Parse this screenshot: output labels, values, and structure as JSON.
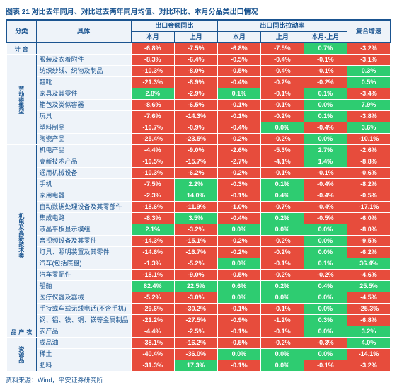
{
  "title": "图表 21 对比去年同月、对比过去两年同月均值、对比环比、本月分品类出口情况",
  "title_color": "#1a5490",
  "source": "资料来源：Wind，平安证券研究所",
  "source_color": "#1a5490",
  "colors": {
    "header_bg": "#eef3f9",
    "header_text": "#1a5490",
    "border": "#1a5490",
    "neg_bg": "#e74c3c",
    "pos_bg": "#2ecc71",
    "val_text": "#ffffff"
  },
  "headers": {
    "cat": "分类",
    "item": "具体",
    "group_amt": "出口金额同比",
    "group_pull": "出口同比拉动率",
    "amt_cur": "本月",
    "amt_prev": "上月",
    "pull_cur": "本月",
    "pull_prev": "上月",
    "pull_diff": "本月-上月",
    "compound": "复合增速"
  },
  "total_row": {
    "cat": "合计",
    "item": "",
    "amt_cur": "-6.8%",
    "amt_prev": "-7.5%",
    "pull_cur": "-6.8%",
    "pull_prev": "-7.5%",
    "pull_diff": "0.7%",
    "compound": "-3.2%"
  },
  "groups": [
    {
      "cat": "劳动密集型",
      "rows": [
        {
          "item": "服装及衣着附件",
          "amt_cur": "-8.3%",
          "amt_prev": "-6.4%",
          "pull_cur": "-0.5%",
          "pull_prev": "-0.4%",
          "pull_diff": "-0.1%",
          "compound": "-3.1%"
        },
        {
          "item": "纺织纱线、织物及制品",
          "amt_cur": "-10.3%",
          "amt_prev": "-8.0%",
          "pull_cur": "-0.5%",
          "pull_prev": "-0.4%",
          "pull_diff": "-0.1%",
          "compound": "0.3%"
        },
        {
          "item": "鞋靴",
          "amt_cur": "-21.3%",
          "amt_prev": "-8.9%",
          "pull_cur": "-0.4%",
          "pull_prev": "-0.2%",
          "pull_diff": "-0.2%",
          "compound": "0.5%"
        },
        {
          "item": "家具及其零件",
          "amt_cur": "2.8%",
          "amt_prev": "-2.9%",
          "pull_cur": "0.1%",
          "pull_prev": "-0.1%",
          "pull_diff": "0.1%",
          "compound": "-3.4%"
        },
        {
          "item": "箱包及类似容器",
          "amt_cur": "-8.6%",
          "amt_prev": "-6.5%",
          "pull_cur": "-0.1%",
          "pull_prev": "-0.1%",
          "pull_diff": "0.0%",
          "compound": "7.9%"
        },
        {
          "item": "玩具",
          "amt_cur": "-7.6%",
          "amt_prev": "-14.3%",
          "pull_cur": "-0.1%",
          "pull_prev": "-0.2%",
          "pull_diff": "0.1%",
          "compound": "-3.8%"
        },
        {
          "item": "塑料制品",
          "amt_cur": "-10.7%",
          "amt_prev": "-0.9%",
          "pull_cur": "-0.4%",
          "pull_prev": "0.0%",
          "pull_diff": "-0.4%",
          "compound": "3.6%"
        },
        {
          "item": "陶瓷产品",
          "amt_cur": "-25.4%",
          "amt_prev": "-23.5%",
          "pull_cur": "-0.2%",
          "pull_prev": "-0.2%",
          "pull_diff": "0.0%",
          "compound": "-10.1%"
        }
      ]
    },
    {
      "cat": "机电及高新技术类",
      "rows": [
        {
          "item": "机电产品",
          "amt_cur": "-4.4%",
          "amt_prev": "-9.0%",
          "pull_cur": "-2.6%",
          "pull_prev": "-5.3%",
          "pull_diff": "2.7%",
          "compound": "-2.6%"
        },
        {
          "item": "高新技术产品",
          "amt_cur": "-10.5%",
          "amt_prev": "-15.7%",
          "pull_cur": "-2.7%",
          "pull_prev": "-4.1%",
          "pull_diff": "1.4%",
          "compound": "-8.8%"
        },
        {
          "item": "通用机械设备",
          "amt_cur": "-10.3%",
          "amt_prev": "-6.2%",
          "pull_cur": "-0.2%",
          "pull_prev": "-0.1%",
          "pull_diff": "-0.1%",
          "compound": "-0.6%"
        },
        {
          "item": "手机",
          "amt_cur": "-7.5%",
          "amt_prev": "2.2%",
          "pull_cur": "-0.3%",
          "pull_prev": "0.1%",
          "pull_diff": "-0.4%",
          "compound": "-8.2%"
        },
        {
          "item": "家用电器",
          "amt_cur": "-2.3%",
          "amt_prev": "14.0%",
          "pull_cur": "-0.1%",
          "pull_prev": "0.4%",
          "pull_diff": "-0.4%",
          "compound": "-0.5%"
        },
        {
          "item": "自动数据处理设备及其零部件",
          "amt_cur": "-18.6%",
          "amt_prev": "-11.9%",
          "pull_cur": "-1.0%",
          "pull_prev": "-0.7%",
          "pull_diff": "-0.4%",
          "compound": "-17.1%"
        },
        {
          "item": "集成电路",
          "amt_cur": "-8.3%",
          "amt_prev": "3.5%",
          "pull_cur": "-0.4%",
          "pull_prev": "0.2%",
          "pull_diff": "-0.5%",
          "compound": "-6.0%"
        },
        {
          "item": "液晶平板显示模组",
          "amt_cur": "2.1%",
          "amt_prev": "-3.2%",
          "pull_cur": "0.0%",
          "pull_prev": "0.0%",
          "pull_diff": "0.0%",
          "compound": "-8.0%"
        },
        {
          "item": "音视频设备及其零件",
          "amt_cur": "-14.3%",
          "amt_prev": "-15.1%",
          "pull_cur": "-0.2%",
          "pull_prev": "-0.2%",
          "pull_diff": "0.0%",
          "compound": "-9.5%"
        },
        {
          "item": "灯具、照明装置及其零件",
          "amt_cur": "-14.6%",
          "amt_prev": "-16.7%",
          "pull_cur": "-0.2%",
          "pull_prev": "-0.2%",
          "pull_diff": "0.0%",
          "compound": "-6.2%"
        },
        {
          "item": "汽车(包括底盘)",
          "amt_cur": "-1.3%",
          "amt_prev": "-5.2%",
          "pull_cur": "0.0%",
          "pull_prev": "-0.1%",
          "pull_diff": "0.1%",
          "compound": "36.4%"
        },
        {
          "item": "汽车零配件",
          "amt_cur": "-18.1%",
          "amt_prev": "-9.0%",
          "pull_cur": "-0.5%",
          "pull_prev": "-0.2%",
          "pull_diff": "-0.2%",
          "compound": "-4.6%"
        },
        {
          "item": "船舶",
          "amt_cur": "82.4%",
          "amt_prev": "22.5%",
          "pull_cur": "0.6%",
          "pull_prev": "0.2%",
          "pull_diff": "0.4%",
          "compound": "25.5%"
        },
        {
          "item": "医疗仪器及器械",
          "amt_cur": "-5.2%",
          "amt_prev": "-3.0%",
          "pull_cur": "0.0%",
          "pull_prev": "0.0%",
          "pull_diff": "0.0%",
          "compound": "-4.5%"
        },
        {
          "item": "手持或车载无线电话(不含手机)",
          "amt_cur": "-29.6%",
          "amt_prev": "-30.2%",
          "pull_cur": "-0.1%",
          "pull_prev": "-0.1%",
          "pull_diff": "0.0%",
          "compound": "-25.3%"
        },
        {
          "item": "钢、铝、铁、铜、镁等金属制品",
          "amt_cur": "-21.2%",
          "amt_prev": "-27.5%",
          "pull_cur": "-0.9%",
          "pull_prev": "-1.2%",
          "pull_diff": "0.3%",
          "compound": "-6.8%"
        }
      ]
    },
    {
      "cat": "农产品",
      "rows": [
        {
          "item": "农产品",
          "amt_cur": "-4.4%",
          "amt_prev": "-2.5%",
          "pull_cur": "-0.1%",
          "pull_prev": "-0.1%",
          "pull_diff": "0.0%",
          "compound": "3.2%"
        }
      ]
    },
    {
      "cat": "资源品",
      "rows": [
        {
          "item": "成品油",
          "amt_cur": "-38.1%",
          "amt_prev": "-16.2%",
          "pull_cur": "-0.5%",
          "pull_prev": "-0.2%",
          "pull_diff": "-0.3%",
          "compound": "4.0%"
        },
        {
          "item": "稀土",
          "amt_cur": "-40.4%",
          "amt_prev": "-36.0%",
          "pull_cur": "0.0%",
          "pull_prev": "0.0%",
          "pull_diff": "0.0%",
          "compound": "-14.1%"
        },
        {
          "item": "肥料",
          "amt_cur": "-31.3%",
          "amt_prev": "17.3%",
          "pull_cur": "-0.1%",
          "pull_prev": "0.0%",
          "pull_diff": "-0.1%",
          "compound": "-3.2%"
        }
      ]
    }
  ]
}
